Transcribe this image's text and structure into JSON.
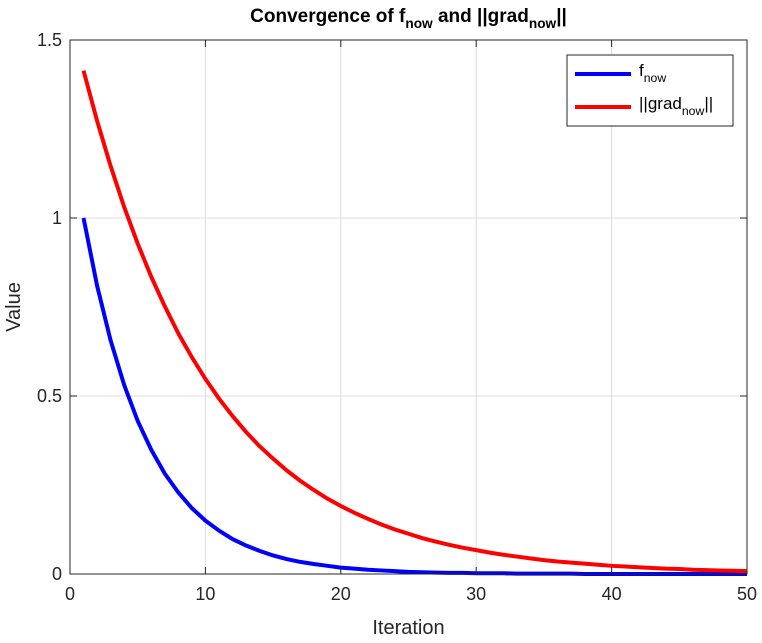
{
  "chart_data": {
    "type": "line",
    "title": {
      "parts": [
        {
          "text": "Convergence of f",
          "sub": false
        },
        {
          "text": "now",
          "sub": true
        },
        {
          "text": " and ||grad",
          "sub": false
        },
        {
          "text": "now",
          "sub": true
        },
        {
          "text": "||",
          "sub": false
        }
      ]
    },
    "xlabel": "Iteration",
    "ylabel": "Value",
    "xlim": [
      0,
      50
    ],
    "ylim": [
      0,
      1.5
    ],
    "xticks": [
      0,
      10,
      20,
      30,
      40,
      50
    ],
    "xtick_labels": [
      "0",
      "10",
      "20",
      "30",
      "40",
      "50"
    ],
    "yticks": [
      0,
      0.5,
      1,
      1.5
    ],
    "ytick_labels": [
      "0",
      "0.5",
      "1",
      "1.5"
    ],
    "grid": true,
    "legend_position": "top-right",
    "x": [
      1,
      2,
      3,
      4,
      5,
      6,
      7,
      8,
      9,
      10,
      11,
      12,
      13,
      14,
      15,
      16,
      17,
      18,
      19,
      20,
      21,
      22,
      23,
      24,
      25,
      26,
      27,
      28,
      29,
      30,
      31,
      32,
      33,
      34,
      35,
      36,
      37,
      38,
      39,
      40,
      41,
      42,
      43,
      44,
      45,
      46,
      47,
      48,
      49,
      50
    ],
    "series": [
      {
        "key": "f",
        "legend": [
          {
            "text": "f",
            "sub": false
          },
          {
            "text": "now",
            "sub": true
          }
        ],
        "color": "#0000ff",
        "values": [
          1.0,
          0.81,
          0.656,
          0.531,
          0.43,
          0.349,
          0.282,
          0.229,
          0.185,
          0.15,
          0.122,
          0.098,
          0.08,
          0.065,
          0.052,
          0.042,
          0.034,
          0.028,
          0.023,
          0.018,
          0.015,
          0.012,
          0.01,
          0.008,
          0.006,
          0.005,
          0.004,
          0.003,
          0.003,
          0.002,
          0.002,
          0.002,
          0.001,
          0.001,
          0.001,
          0.001,
          0.001,
          0.0,
          0.0,
          0.0,
          0.0,
          0.0,
          0.0,
          0.0,
          0.0,
          0.0,
          0.0,
          0.0,
          0.0,
          0.0
        ]
      },
      {
        "key": "grad",
        "legend": [
          {
            "text": "||grad",
            "sub": false
          },
          {
            "text": "now",
            "sub": true
          },
          {
            "text": "||",
            "sub": false
          }
        ],
        "color": "#ff0000",
        "values": [
          1.414,
          1.273,
          1.146,
          1.031,
          0.928,
          0.835,
          0.752,
          0.676,
          0.609,
          0.548,
          0.493,
          0.444,
          0.399,
          0.359,
          0.324,
          0.291,
          0.262,
          0.236,
          0.212,
          0.191,
          0.172,
          0.155,
          0.139,
          0.125,
          0.113,
          0.101,
          0.091,
          0.082,
          0.074,
          0.067,
          0.06,
          0.054,
          0.049,
          0.044,
          0.039,
          0.035,
          0.032,
          0.029,
          0.026,
          0.023,
          0.021,
          0.019,
          0.017,
          0.015,
          0.014,
          0.012,
          0.011,
          0.01,
          0.009,
          0.008
        ]
      }
    ]
  }
}
